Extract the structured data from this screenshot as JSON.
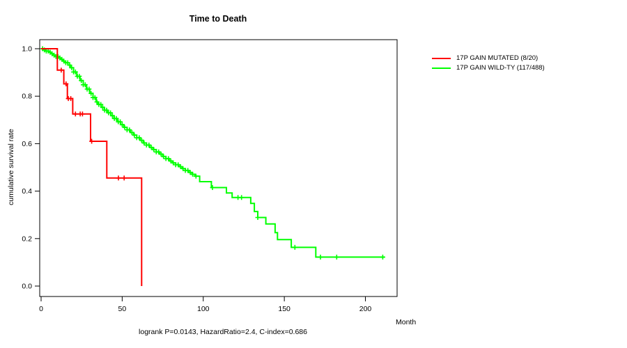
{
  "header": {
    "title": "Time to Death"
  },
  "axes": {
    "y_label": "cumulative survival rate",
    "x_label": "Month"
  },
  "footer": {
    "stats": "logrank P=0.0143, HazardRatio=2.4, C-index=0.686"
  },
  "legend": {
    "items": [
      {
        "label": "17P GAIN MUTATED (8/20)",
        "color": "#ff0000"
      },
      {
        "label": "17P GAIN WILD-TY (117/488)",
        "color": "#00ff00"
      }
    ]
  },
  "chart_data": {
    "type": "line",
    "subtype": "kaplan-meier-step",
    "title": "Time to Death",
    "xlabel": "Month",
    "ylabel": "cumulative survival rate",
    "xlim": [
      0,
      220
    ],
    "ylim": [
      0.0,
      1.0
    ],
    "grid": false,
    "legend_position": "right-outside",
    "annotation": "logrank P=0.0143, HazardRatio=2.4, C-index=0.686",
    "xtick_values": [
      0,
      50,
      100,
      150,
      200
    ],
    "xtick_labels": [
      "0",
      "50",
      "100",
      "150",
      "200"
    ],
    "ytick_values": [
      0.0,
      0.2,
      0.4,
      0.6,
      0.8,
      1.0
    ],
    "ytick_labels": [
      "0.0",
      "0.2",
      "0.4",
      "0.6",
      "0.8",
      "1.0"
    ],
    "axis_color": "#000000",
    "series": [
      {
        "name": "17P GAIN MUTATED (8/20)",
        "color": "#ff0000",
        "points": [
          [
            0,
            1.0
          ],
          [
            10,
            0.91
          ],
          [
            14,
            0.852
          ],
          [
            16.2,
            0.79
          ],
          [
            19.5,
            0.725
          ],
          [
            30.5,
            0.61
          ],
          [
            40.5,
            0.455
          ],
          [
            62,
            0.0
          ]
        ],
        "censor_times": [
          12.4,
          15.4,
          16.8,
          18.3,
          21.2,
          24.1,
          25.5,
          31.2,
          47.7,
          51.2
        ]
      },
      {
        "name": "17P GAIN WILD-TY (117/488)",
        "color": "#00ff00",
        "points": [
          [
            0,
            1.0
          ],
          [
            1.5,
            0.995
          ],
          [
            3,
            0.99
          ],
          [
            4.5,
            0.985
          ],
          [
            6,
            0.979
          ],
          [
            7.5,
            0.973
          ],
          [
            9,
            0.967
          ],
          [
            10.5,
            0.961
          ],
          [
            12,
            0.955
          ],
          [
            13.5,
            0.948
          ],
          [
            15,
            0.941
          ],
          [
            16.5,
            0.931
          ],
          [
            18,
            0.92
          ],
          [
            20,
            0.902
          ],
          [
            22,
            0.884
          ],
          [
            24,
            0.866
          ],
          [
            26,
            0.848
          ],
          [
            28,
            0.83
          ],
          [
            30,
            0.812
          ],
          [
            32,
            0.794
          ],
          [
            34,
            0.776
          ],
          [
            35,
            0.765
          ],
          [
            37,
            0.753
          ],
          [
            39,
            0.741
          ],
          [
            41,
            0.73
          ],
          [
            43,
            0.718
          ],
          [
            45,
            0.706
          ],
          [
            47,
            0.692
          ],
          [
            49,
            0.68
          ],
          [
            51,
            0.669
          ],
          [
            53,
            0.658
          ],
          [
            55,
            0.647
          ],
          [
            57,
            0.636
          ],
          [
            59,
            0.625
          ],
          [
            61,
            0.614
          ],
          [
            63,
            0.603
          ],
          [
            65,
            0.594
          ],
          [
            67,
            0.584
          ],
          [
            69,
            0.575
          ],
          [
            71,
            0.565
          ],
          [
            73,
            0.556
          ],
          [
            75,
            0.546
          ],
          [
            77,
            0.537
          ],
          [
            79,
            0.527
          ],
          [
            81,
            0.519
          ],
          [
            83,
            0.511
          ],
          [
            85,
            0.503
          ],
          [
            87,
            0.495
          ],
          [
            89,
            0.487
          ],
          [
            91,
            0.479
          ],
          [
            93,
            0.471
          ],
          [
            95,
            0.463
          ],
          [
            97.8,
            0.44
          ],
          [
            105,
            0.415
          ],
          [
            114.3,
            0.392
          ],
          [
            117.8,
            0.373
          ],
          [
            129.3,
            0.348
          ],
          [
            131.5,
            0.314
          ],
          [
            133.6,
            0.289
          ],
          [
            138.6,
            0.262
          ],
          [
            144.3,
            0.225
          ],
          [
            145.8,
            0.196
          ],
          [
            154.3,
            0.163
          ],
          [
            169.4,
            0.122
          ],
          [
            212,
            0.122
          ]
        ],
        "censor_times": [
          0.9,
          2,
          3.2,
          4.4,
          5.6,
          6.8,
          8,
          9.2,
          10.4,
          11.6,
          12.8,
          14,
          15.2,
          16.4,
          17.6,
          18.8,
          20,
          21.2,
          22.4,
          23.6,
          24.8,
          26,
          27.2,
          28.4,
          29.6,
          30.8,
          32,
          33.2,
          34.4,
          35.6,
          36.8,
          38,
          39.2,
          40.4,
          41.6,
          42.8,
          44,
          45.2,
          46.4,
          47.6,
          48.8,
          50,
          51.5,
          53,
          54.5,
          56,
          57.5,
          59,
          60.5,
          62,
          63.5,
          65,
          66.5,
          68,
          69.5,
          71,
          72.5,
          74,
          75.5,
          77,
          78.5,
          80,
          81.5,
          83,
          84.5,
          86,
          87.5,
          89,
          90.5,
          92,
          93.5,
          95.5,
          105.7,
          121.4,
          123.6,
          133.6,
          156.5,
          172.3,
          182.3,
          210.7
        ]
      }
    ]
  }
}
